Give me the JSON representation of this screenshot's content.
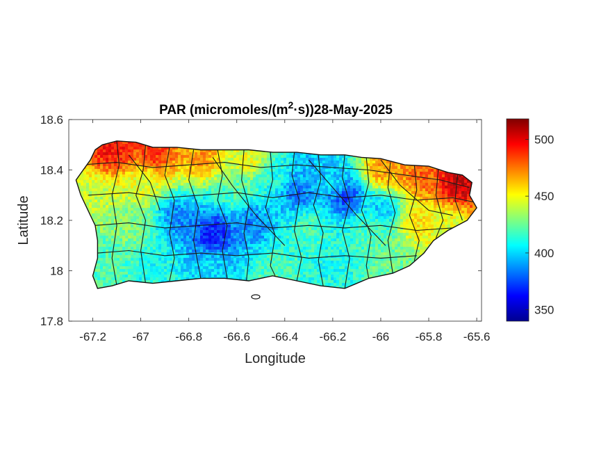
{
  "chart_data": {
    "type": "heatmap",
    "title_prefix": "PAR (micromoles/(m",
    "title_sup": "2",
    "title_suffix": "·s))28-May-2025",
    "xlabel": "Longitude",
    "ylabel": "Latitude",
    "xlim": [
      -67.3,
      -65.58
    ],
    "ylim": [
      17.8,
      18.6
    ],
    "xticks": [
      -67.2,
      -67,
      -66.8,
      -66.6,
      -66.4,
      -66.2,
      -66,
      -65.8,
      -65.6
    ],
    "xtick_labels": [
      "-67.2",
      "-67",
      "-66.8",
      "-66.6",
      "-66.4",
      "-66.2",
      "-66",
      "-65.8",
      "-65.6"
    ],
    "yticks": [
      17.8,
      18,
      18.2,
      18.4,
      18.6
    ],
    "ytick_labels": [
      "17.8",
      "18",
      "18.2",
      "18.4",
      "18.6"
    ],
    "colormap": "jet",
    "colorbar": {
      "range": [
        340,
        518
      ],
      "ticks": [
        350,
        400,
        450,
        500
      ],
      "tick_labels": [
        "350",
        "400",
        "450",
        "500"
      ],
      "location": "right"
    },
    "value_field": [
      {
        "lon": -67.12,
        "lat": 18.48,
        "value": 495
      },
      {
        "lon": -66.95,
        "lat": 18.47,
        "value": 488
      },
      {
        "lon": -66.75,
        "lat": 18.46,
        "value": 470
      },
      {
        "lon": -66.55,
        "lat": 18.44,
        "value": 450
      },
      {
        "lon": -66.45,
        "lat": 18.38,
        "value": 410
      },
      {
        "lon": -66.3,
        "lat": 18.4,
        "value": 395
      },
      {
        "lon": -66.0,
        "lat": 18.4,
        "value": 470
      },
      {
        "lon": -65.85,
        "lat": 18.38,
        "value": 480
      },
      {
        "lon": -65.68,
        "lat": 18.35,
        "value": 505
      },
      {
        "lon": -67.2,
        "lat": 18.3,
        "value": 440
      },
      {
        "lon": -67.05,
        "lat": 18.2,
        "value": 430
      },
      {
        "lon": -66.85,
        "lat": 18.22,
        "value": 385
      },
      {
        "lon": -66.7,
        "lat": 18.15,
        "value": 365
      },
      {
        "lon": -66.55,
        "lat": 18.2,
        "value": 385
      },
      {
        "lon": -66.35,
        "lat": 18.32,
        "value": 380
      },
      {
        "lon": -66.15,
        "lat": 18.3,
        "value": 370
      },
      {
        "lon": -66.3,
        "lat": 18.18,
        "value": 420
      },
      {
        "lon": -66.05,
        "lat": 18.18,
        "value": 420
      },
      {
        "lon": -65.85,
        "lat": 18.2,
        "value": 455
      },
      {
        "lon": -65.72,
        "lat": 18.18,
        "value": 445
      },
      {
        "lon": -67.15,
        "lat": 18.05,
        "value": 420
      },
      {
        "lon": -66.95,
        "lat": 18.0,
        "value": 410
      },
      {
        "lon": -66.7,
        "lat": 18.02,
        "value": 400
      },
      {
        "lon": -66.45,
        "lat": 18.0,
        "value": 420
      },
      {
        "lon": -66.2,
        "lat": 18.02,
        "value": 410
      },
      {
        "lon": -65.95,
        "lat": 18.04,
        "value": 425
      },
      {
        "lon": -66.0,
        "lat": 18.25,
        "value": 395
      },
      {
        "lon": -66.2,
        "lat": 18.35,
        "value": 400
      },
      {
        "lon": -66.6,
        "lat": 18.32,
        "value": 420
      },
      {
        "lon": -67.0,
        "lat": 18.35,
        "value": 445
      }
    ]
  }
}
